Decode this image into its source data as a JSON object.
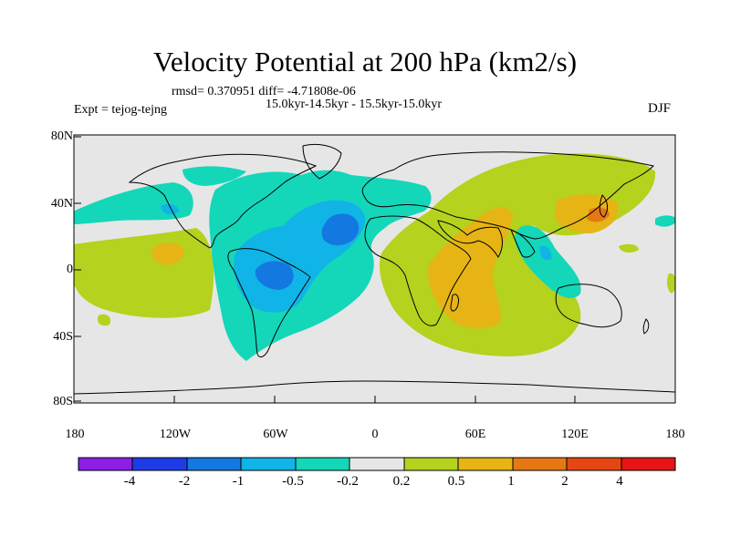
{
  "title": "Velocity Potential at 200 hPa (km2/s)",
  "stats_line": "rmsd= 0.370951 diff= -4.71808e-06",
  "period_line": "15.0kyr-14.5kyr - 15.5kyr-15.0kyr",
  "experiment_label": "Expt = tejog-tejng",
  "season": "DJF",
  "lat_labels": [
    "80N",
    "40N",
    "0",
    "40S",
    "80S"
  ],
  "lon_labels": [
    "180",
    "120W",
    "60W",
    "0",
    "60E",
    "120E",
    "180"
  ],
  "colorbar": {
    "labels": [
      "-4",
      "-2",
      "-1",
      "-0.5",
      "-0.2",
      "0.2",
      "0.5",
      "1",
      "2",
      "4"
    ],
    "colors": [
      "#8c1ee6",
      "#1e3ce6",
      "#1478e1",
      "#10b4e6",
      "#14d7b9",
      "#e6e6e6",
      "#b4d21e",
      "#e6b414",
      "#e67814",
      "#e64614",
      "#e61414"
    ]
  },
  "palette": {
    "neutral": "#e6e6e6",
    "pos_weak": "#b4d21e",
    "pos_mid": "#e6b414",
    "pos_strong": "#e67814",
    "neg_weak": "#14d7b9",
    "neg_mid": "#10b4e6",
    "neg_strong": "#1478e1"
  }
}
